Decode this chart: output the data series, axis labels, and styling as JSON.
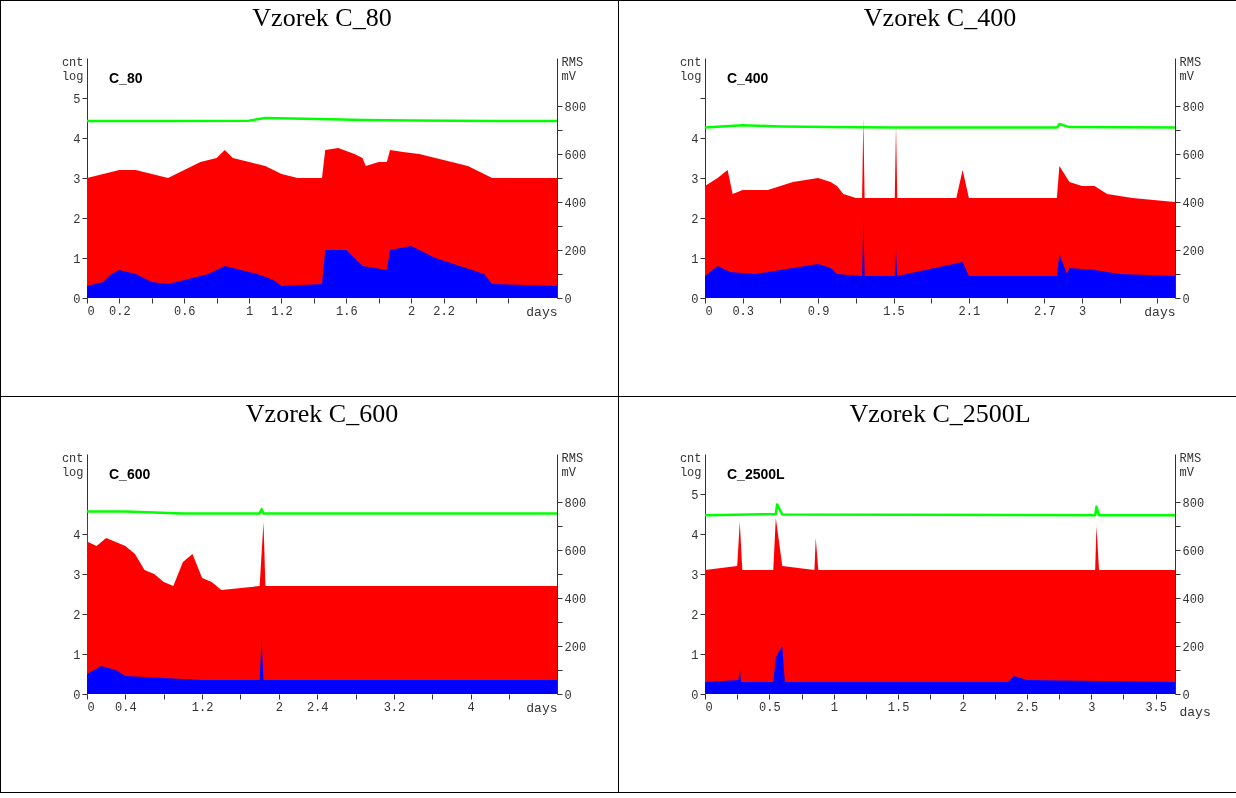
{
  "chart_data": [
    {
      "type": "area",
      "title": "Vzorek C_80",
      "xlabel": "days",
      "ylabel": "cnt log",
      "y2label": "RMS mV",
      "annotations": [
        "C_80"
      ],
      "grid": false,
      "xlim": [
        0,
        2.9
      ],
      "xticks": [
        0,
        0.2,
        {
          "value": 0.4,
          "label": null
        },
        0.6,
        {
          "value": 0.8,
          "label": null
        },
        1,
        1.2,
        {
          "value": 1.4,
          "label": null
        },
        1.6,
        {
          "value": 1.8,
          "label": null
        },
        2,
        2.2,
        {
          "value": 2.4,
          "label": null
        },
        {
          "value": 2.6,
          "label": null
        }
      ],
      "ylim": [
        0,
        6
      ],
      "yticks": [
        0,
        1,
        2,
        3,
        4,
        5
      ],
      "y2lim": [
        0,
        1000
      ],
      "y2ticks": [
        0,
        {
          "value": 100,
          "label": null
        },
        200,
        {
          "value": 300,
          "label": null
        },
        400,
        {
          "value": 500,
          "label": null
        },
        600,
        {
          "value": 700,
          "label": null
        },
        800
      ],
      "series": [
        {
          "color": "#ff0000",
          "x": [
            0,
            0.1,
            0.2,
            0.3,
            0.4,
            0.5,
            0.6,
            0.7,
            0.8,
            0.85,
            0.9,
            1.0,
            1.1,
            1.2,
            1.3,
            1.45,
            1.47,
            1.55,
            1.65,
            1.7,
            1.72,
            1.8,
            1.85,
            1.87,
            1.95,
            2.05,
            2.15,
            2.25,
            2.35,
            2.45,
            2.5,
            2.7,
            2.9
          ],
          "values": [
            3.0,
            3.1,
            3.2,
            3.2,
            3.1,
            3.0,
            3.2,
            3.4,
            3.5,
            3.7,
            3.5,
            3.4,
            3.3,
            3.1,
            3.0,
            3.0,
            3.7,
            3.75,
            3.6,
            3.5,
            3.3,
            3.4,
            3.4,
            3.7,
            3.65,
            3.6,
            3.5,
            3.4,
            3.3,
            3.1,
            3.0,
            3.0,
            3.0
          ]
        },
        {
          "color": "#0000ff",
          "x": [
            0,
            0.1,
            0.15,
            0.2,
            0.3,
            0.35,
            0.4,
            0.5,
            0.6,
            0.75,
            0.85,
            0.95,
            1.05,
            1.15,
            1.2,
            1.45,
            1.47,
            1.6,
            1.7,
            1.85,
            1.87,
            2.0,
            2.15,
            2.3,
            2.45,
            2.5,
            2.9
          ],
          "values": [
            0.3,
            0.4,
            0.6,
            0.7,
            0.6,
            0.5,
            0.4,
            0.35,
            0.45,
            0.6,
            0.8,
            0.7,
            0.6,
            0.45,
            0.3,
            0.35,
            1.2,
            1.2,
            0.8,
            0.7,
            1.2,
            1.3,
            1.0,
            0.8,
            0.6,
            0.35,
            0.3
          ]
        },
        {
          "type": "line",
          "axis": "y2",
          "color": "#00ff00",
          "x": [
            0,
            0.5,
            1.0,
            1.1,
            1.5,
            1.7,
            2.0,
            2.5,
            2.9
          ],
          "values": [
            737,
            738,
            739,
            750,
            745,
            742,
            740,
            738,
            737
          ]
        }
      ]
    },
    {
      "type": "area",
      "title": "Vzorek C_400",
      "xlabel": "days",
      "ylabel": "cnt log",
      "y2label": "RMS mV",
      "annotations": [
        "C_400"
      ],
      "grid": false,
      "xlim": [
        0,
        3.74
      ],
      "xticks": [
        0,
        0.3,
        {
          "value": 0.6,
          "label": null
        },
        0.9,
        {
          "value": 1.2,
          "label": null
        },
        1.5,
        {
          "value": 1.8,
          "label": null
        },
        2.1,
        {
          "value": 2.4,
          "label": null
        },
        2.7,
        3,
        {
          "value": 3.3,
          "label": null
        },
        {
          "value": 3.6,
          "label": null
        }
      ],
      "ylim": [
        0,
        6
      ],
      "yticks": [
        0,
        1,
        2,
        3,
        4,
        {
          "value": 5,
          "label": null
        }
      ],
      "y2lim": [
        0,
        1000
      ],
      "y2ticks": [
        0,
        {
          "value": 100,
          "label": null
        },
        200,
        {
          "value": 300,
          "label": null
        },
        400,
        {
          "value": 500,
          "label": null
        },
        600,
        {
          "value": 700,
          "label": null
        },
        800
      ],
      "series": [
        {
          "color": "#ff0000",
          "x": [
            0,
            0.05,
            0.1,
            0.18,
            0.22,
            0.3,
            0.5,
            0.6,
            0.7,
            0.9,
            1.0,
            1.05,
            1.1,
            1.2,
            1.25,
            1.26,
            1.27,
            1.5,
            1.51,
            1.52,
            1.53,
            2.0,
            2.05,
            2.1,
            2.8,
            2.82,
            2.9,
            3.0,
            3.1,
            3.2,
            3.4,
            3.74
          ],
          "values": [
            2.8,
            2.9,
            3.0,
            3.2,
            2.6,
            2.7,
            2.7,
            2.8,
            2.9,
            3.0,
            2.9,
            2.8,
            2.6,
            2.5,
            2.5,
            4.5,
            2.5,
            2.5,
            2.5,
            4.3,
            2.5,
            2.5,
            3.2,
            2.5,
            2.5,
            3.3,
            2.9,
            2.8,
            2.8,
            2.6,
            2.5,
            2.4
          ]
        },
        {
          "color": "#0000ff",
          "x": [
            0,
            0.1,
            0.2,
            0.4,
            0.6,
            0.8,
            0.9,
            1.0,
            1.05,
            1.25,
            1.26,
            1.27,
            1.51,
            1.52,
            1.53,
            2.05,
            2.1,
            2.8,
            2.82,
            2.88,
            2.9,
            3.1,
            3.3,
            3.74
          ],
          "values": [
            0.55,
            0.8,
            0.65,
            0.6,
            0.7,
            0.8,
            0.85,
            0.75,
            0.6,
            0.55,
            2.0,
            0.55,
            0.55,
            1.2,
            0.55,
            0.9,
            0.55,
            0.55,
            1.1,
            0.6,
            0.75,
            0.7,
            0.6,
            0.55
          ]
        },
        {
          "type": "line",
          "axis": "y2",
          "color": "#00ff00",
          "x": [
            0,
            0.3,
            0.6,
            1.0,
            1.5,
            2.8,
            2.82,
            2.9,
            3.74
          ],
          "values": [
            710,
            720,
            715,
            712,
            710,
            710,
            725,
            712,
            710
          ]
        }
      ]
    },
    {
      "type": "area",
      "title": "Vzorek C_600",
      "xlabel": "days",
      "ylabel": "cnt log",
      "y2label": "RMS mV",
      "annotations": [
        "C_600"
      ],
      "grid": false,
      "xlim": [
        0,
        4.9
      ],
      "xticks": [
        0,
        0.4,
        {
          "value": 0.8,
          "label": null
        },
        1.2,
        {
          "value": 1.6,
          "label": null
        },
        2,
        2.4,
        {
          "value": 2.8,
          "label": null
        },
        3.2,
        {
          "value": 3.6,
          "label": null
        },
        4,
        {
          "value": 4.4,
          "label": null
        }
      ],
      "ylim": [
        0,
        6
      ],
      "yticks": [
        0,
        1,
        2,
        3,
        4
      ],
      "y2lim": [
        0,
        1000
      ],
      "y2ticks": [
        0,
        {
          "value": 100,
          "label": null
        },
        200,
        {
          "value": 300,
          "label": null
        },
        400,
        {
          "value": 500,
          "label": null
        },
        600,
        {
          "value": 700,
          "label": null
        },
        800
      ],
      "series": [
        {
          "color": "#ff0000",
          "x": [
            0,
            0.01,
            0.1,
            0.2,
            0.3,
            0.4,
            0.5,
            0.6,
            0.7,
            0.8,
            0.9,
            1.0,
            1.1,
            1.2,
            1.3,
            1.4,
            1.8,
            1.84,
            1.86,
            1.9,
            2.4,
            3.2,
            4.0,
            4.5,
            4.9
          ],
          "values": [
            4.8,
            3.8,
            3.7,
            3.9,
            3.8,
            3.7,
            3.5,
            3.1,
            3.0,
            2.8,
            2.7,
            3.3,
            3.5,
            2.9,
            2.8,
            2.6,
            2.7,
            4.3,
            2.7,
            2.7,
            2.7,
            2.7,
            2.7,
            2.7,
            2.7
          ]
        },
        {
          "color": "#0000ff",
          "x": [
            0,
            0.15,
            0.3,
            0.4,
            0.8,
            1.2,
            1.8,
            1.82,
            1.84,
            4.9
          ],
          "values": [
            0.5,
            0.7,
            0.6,
            0.45,
            0.4,
            0.35,
            0.35,
            1.4,
            0.35,
            0.35
          ]
        },
        {
          "type": "line",
          "axis": "y2",
          "color": "#00ff00",
          "x": [
            0,
            0.4,
            1.0,
            1.8,
            1.82,
            1.84,
            4.9
          ],
          "values": [
            760,
            760,
            752,
            752,
            770,
            752,
            752
          ]
        }
      ]
    },
    {
      "type": "area",
      "title": "Vzorek C_2500L",
      "xlabel": "days",
      "ylabel": "cnt log",
      "y2label": "RMS mV",
      "annotations": [
        "C_2500L"
      ],
      "grid": false,
      "xlim": [
        0,
        3.65
      ],
      "xticks": [
        0,
        {
          "value": 0.25,
          "label": null
        },
        0.5,
        {
          "value": 0.75,
          "label": null
        },
        1,
        {
          "value": 1.25,
          "label": null
        },
        1.5,
        {
          "value": 1.75,
          "label": null
        },
        2,
        {
          "value": 2.25,
          "label": null
        },
        2.5,
        {
          "value": 2.75,
          "label": null
        },
        3,
        {
          "value": 3.25,
          "label": null
        },
        3.5
      ],
      "ylim": [
        0,
        6
      ],
      "yticks": [
        0,
        1,
        2,
        3,
        4,
        5
      ],
      "y2lim": [
        0,
        1000
      ],
      "y2ticks": [
        0,
        {
          "value": 100,
          "label": null
        },
        200,
        {
          "value": 300,
          "label": null
        },
        400,
        {
          "value": 500,
          "label": null
        },
        600,
        {
          "value": 700,
          "label": null
        },
        800
      ],
      "series": [
        {
          "color": "#ff0000",
          "x": [
            0,
            0.25,
            0.27,
            0.29,
            0.53,
            0.55,
            0.6,
            0.85,
            0.86,
            0.88,
            3.03,
            3.04,
            3.06,
            3.65
          ],
          "values": [
            3.1,
            3.2,
            4.3,
            3.1,
            3.1,
            4.4,
            3.2,
            3.1,
            3.9,
            3.1,
            3.1,
            4.2,
            3.1,
            3.1
          ]
        },
        {
          "color": "#0000ff",
          "x": [
            0,
            0.26,
            0.27,
            0.28,
            0.53,
            0.55,
            0.58,
            0.6,
            0.62,
            2.35,
            2.4,
            2.5,
            3.65
          ],
          "values": [
            0.3,
            0.35,
            0.65,
            0.3,
            0.3,
            0.9,
            1.1,
            1.2,
            0.3,
            0.3,
            0.45,
            0.35,
            0.3
          ]
        },
        {
          "type": "line",
          "axis": "y2",
          "color": "#00ff00",
          "x": [
            0,
            0.55,
            0.56,
            0.6,
            3.03,
            3.04,
            3.06,
            3.65
          ],
          "values": [
            745,
            750,
            790,
            748,
            745,
            780,
            745,
            745
          ]
        }
      ]
    }
  ]
}
